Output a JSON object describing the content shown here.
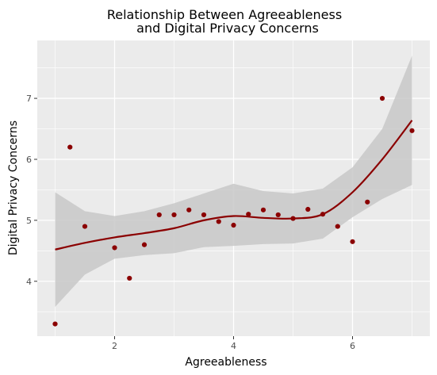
{
  "chart_data": {
    "type": "scatter",
    "title_lines": [
      "Relationship Between Agreeableness",
      "and Digital Privacy Concerns"
    ],
    "xlabel": "Agreeableness",
    "ylabel": "Digital Privacy Concerns",
    "xlim": [
      0.7,
      7.3
    ],
    "ylim": [
      3.1,
      7.95
    ],
    "x_ticks": [
      2,
      4,
      6
    ],
    "y_ticks": [
      4,
      5,
      6,
      7
    ],
    "x_minor_ticks": [
      1,
      3,
      5,
      7
    ],
    "y_minor_ticks": [
      3.5,
      4.5,
      5.5,
      6.5,
      7.5
    ],
    "grid": true,
    "colors": {
      "panel": "#ebebeb",
      "grid_major": "#ffffff",
      "points": "#8b0000",
      "smooth_line": "#8b0000",
      "ribbon": "#c8c8c8"
    },
    "points": [
      {
        "x": 1.0,
        "y": 3.3
      },
      {
        "x": 1.25,
        "y": 6.2
      },
      {
        "x": 1.5,
        "y": 4.9
      },
      {
        "x": 2.0,
        "y": 4.55
      },
      {
        "x": 2.25,
        "y": 4.05
      },
      {
        "x": 2.5,
        "y": 4.6
      },
      {
        "x": 2.75,
        "y": 5.09
      },
      {
        "x": 3.0,
        "y": 5.09
      },
      {
        "x": 3.25,
        "y": 5.17
      },
      {
        "x": 3.5,
        "y": 5.09
      },
      {
        "x": 3.75,
        "y": 4.98
      },
      {
        "x": 4.0,
        "y": 4.92
      },
      {
        "x": 4.25,
        "y": 5.1
      },
      {
        "x": 4.5,
        "y": 5.17
      },
      {
        "x": 4.75,
        "y": 5.09
      },
      {
        "x": 5.0,
        "y": 5.03
      },
      {
        "x": 5.25,
        "y": 5.18
      },
      {
        "x": 5.5,
        "y": 5.1
      },
      {
        "x": 5.75,
        "y": 4.9
      },
      {
        "x": 6.0,
        "y": 4.65
      },
      {
        "x": 6.25,
        "y": 5.3
      },
      {
        "x": 6.5,
        "y": 7.0
      },
      {
        "x": 7.0,
        "y": 6.47
      }
    ],
    "smooth": {
      "method": "loess",
      "x": [
        1.0,
        1.5,
        2.0,
        2.5,
        3.0,
        3.5,
        4.0,
        4.5,
        5.0,
        5.5,
        6.0,
        6.5,
        7.0
      ],
      "y": [
        4.52,
        4.63,
        4.72,
        4.79,
        4.87,
        5.0,
        5.07,
        5.04,
        5.03,
        5.1,
        5.46,
        6.0,
        6.64
      ],
      "lower": [
        3.58,
        4.11,
        4.37,
        4.43,
        4.46,
        4.56,
        4.58,
        4.61,
        4.62,
        4.7,
        5.05,
        5.35,
        5.58
      ],
      "upper": [
        5.46,
        5.15,
        5.07,
        5.15,
        5.28,
        5.44,
        5.6,
        5.48,
        5.44,
        5.52,
        5.87,
        6.5,
        7.7
      ]
    }
  }
}
